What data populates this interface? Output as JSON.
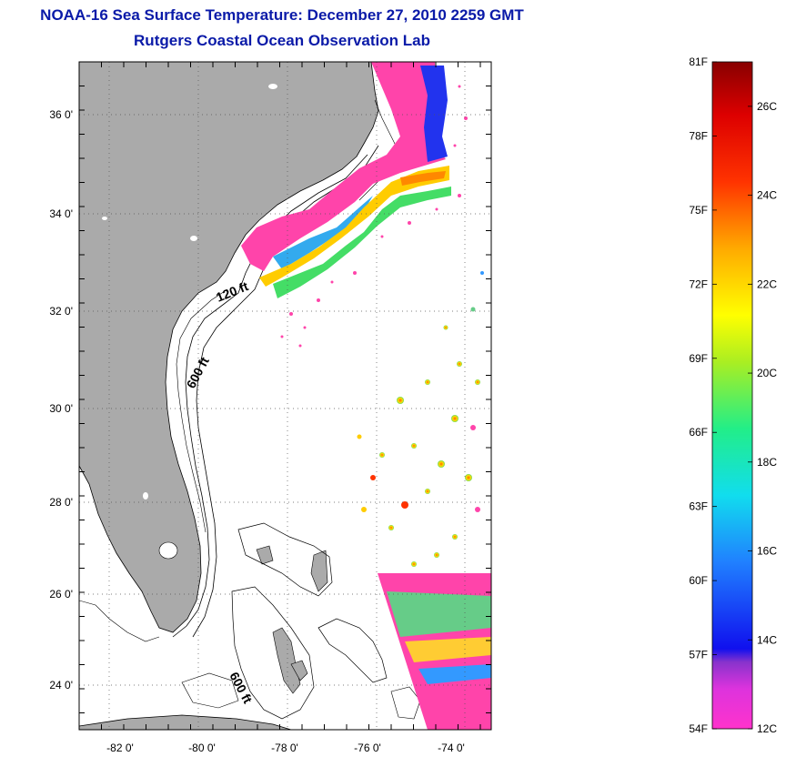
{
  "title": {
    "line1": "NOAA-16 Sea Surface Temperature:  December 27, 2010 2259 GMT",
    "line2": "Rutgers Coastal Ocean Observation Lab"
  },
  "map": {
    "lat_labels": [
      "36 0'",
      "34 0'",
      "32 0'",
      "30 0'",
      "28 0'",
      "26 0'",
      "24 0'"
    ],
    "lon_labels": [
      "-82 0'",
      "-80 0'",
      "-78 0'",
      "-76 0'",
      "-74 0'"
    ],
    "contour_labels": [
      "120 ft",
      "600 ft",
      "600 ft"
    ],
    "colors": {
      "land": "#aaaaaa",
      "frame": "#000000",
      "title": "#0a1aa8"
    }
  },
  "colorbar": {
    "f_labels": [
      "81F",
      "78F",
      "75F",
      "72F",
      "69F",
      "66F",
      "63F",
      "60F",
      "57F",
      "54F"
    ],
    "c_labels": [
      "26C",
      "24C",
      "22C",
      "20C",
      "18C",
      "16C",
      "14C",
      "12C"
    ],
    "range_f": [
      54,
      81
    ],
    "range_c": [
      12,
      27
    ]
  }
}
